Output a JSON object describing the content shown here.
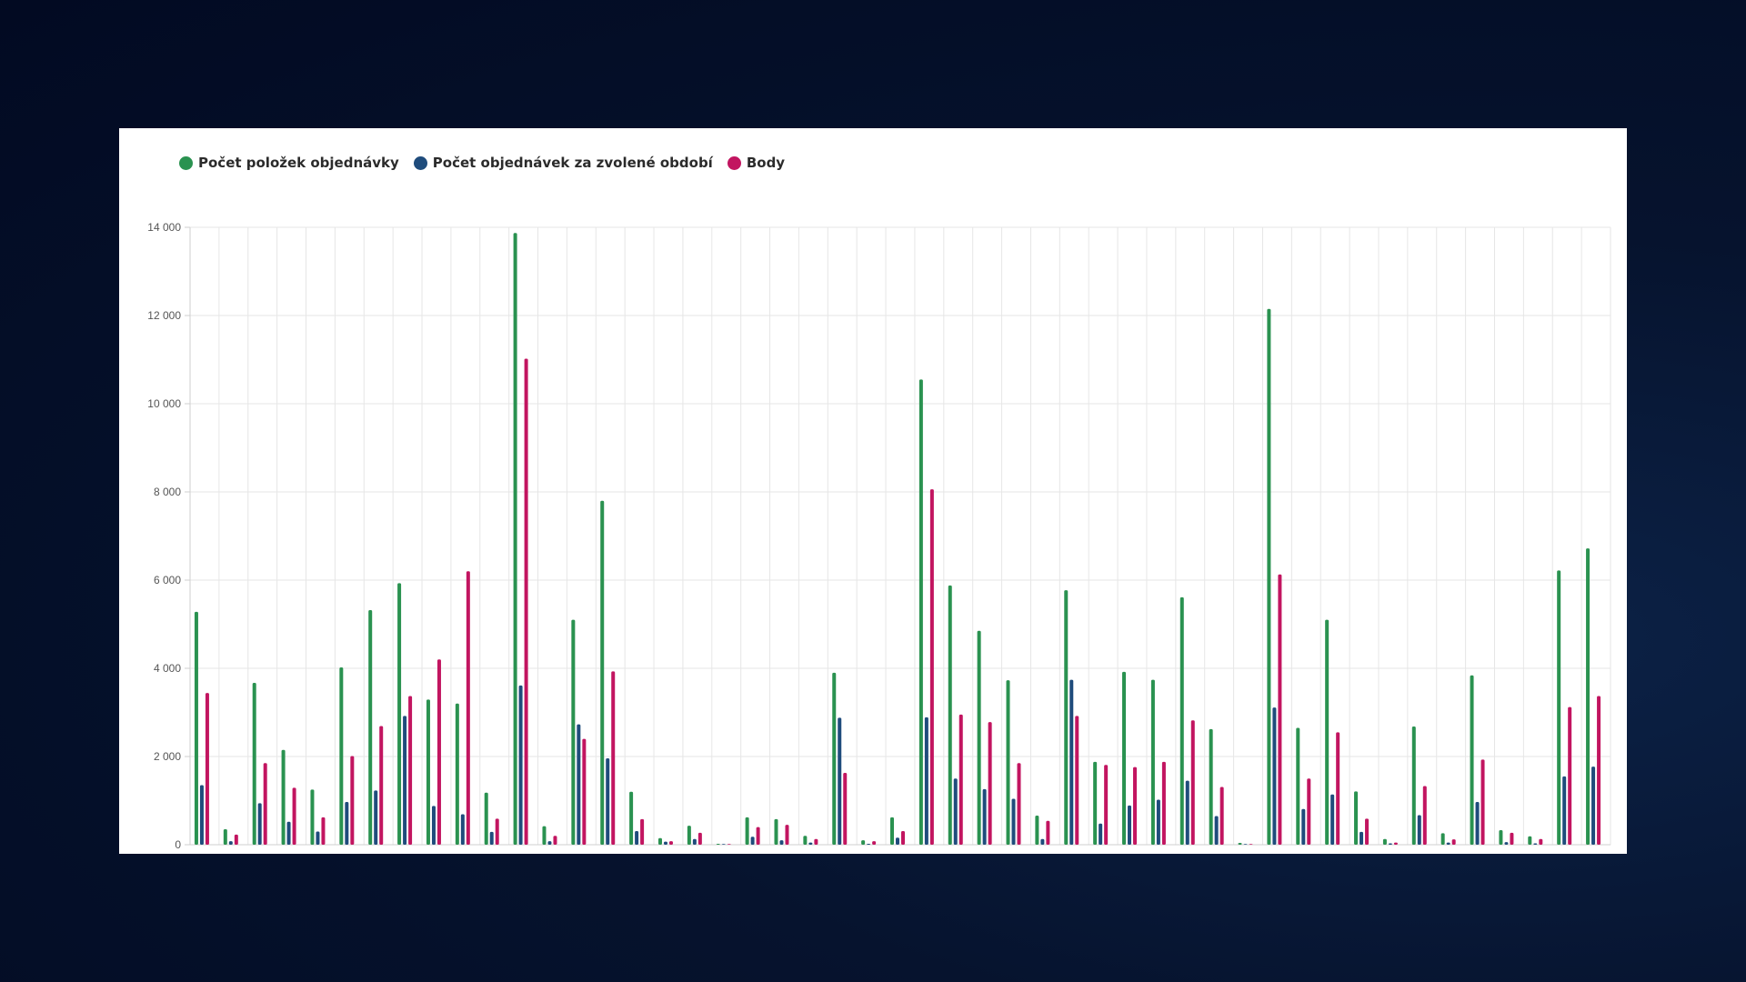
{
  "colors": {
    "green": "#2a9250",
    "blue": "#1f4c7c",
    "red": "#c21560"
  },
  "legend": [
    {
      "label": "Počet položek objednávky",
      "color": "#2a9250"
    },
    {
      "label": "Počet objednávek za zvolené období",
      "color": "#1f4c7c"
    },
    {
      "label": "Body",
      "color": "#c21560"
    }
  ],
  "chart_data": {
    "type": "bar",
    "grid": true,
    "legend_position": "top-left",
    "ylim": [
      0,
      14000
    ],
    "yticks": [
      "0",
      "2 000",
      "4 000",
      "6 000",
      "8 000",
      "10 000",
      "12 000",
      "14 000"
    ],
    "series": [
      {
        "name": "Počet položek objednávky",
        "color": "#2a9250",
        "values": [
          5280,
          350,
          3670,
          2150,
          1250,
          4020,
          5320,
          5930,
          3290,
          3200,
          1180,
          13870,
          420,
          5100,
          7800,
          1200,
          150,
          430,
          20,
          620,
          580,
          200,
          3900,
          100,
          620,
          10550,
          5880,
          4850,
          3730,
          660,
          5770,
          1880,
          3920,
          3740,
          5610,
          2620,
          40,
          12150,
          2650,
          5100,
          1210,
          130,
          2680,
          260,
          3840,
          330,
          190,
          6220,
          6720
        ]
      },
      {
        "name": "Počet objednávek za zvolené období",
        "color": "#1f4c7c",
        "values": [
          1350,
          80,
          940,
          520,
          300,
          970,
          1230,
          2920,
          880,
          690,
          290,
          3610,
          80,
          2730,
          1960,
          310,
          70,
          130,
          10,
          180,
          100,
          50,
          2880,
          20,
          160,
          2890,
          1500,
          1260,
          1040,
          130,
          3740,
          480,
          890,
          1020,
          1450,
          650,
          10,
          3110,
          810,
          1140,
          290,
          30,
          670,
          50,
          970,
          60,
          30,
          1550,
          1770
        ]
      },
      {
        "name": "Body",
        "color": "#c21560",
        "values": [
          3440,
          230,
          1850,
          1290,
          620,
          2010,
          2690,
          3370,
          4200,
          6200,
          590,
          11020,
          200,
          2400,
          3930,
          580,
          80,
          270,
          0,
          400,
          450,
          130,
          1630,
          80,
          310,
          8060,
          2950,
          2780,
          1850,
          540,
          2920,
          1810,
          1760,
          1880,
          2820,
          1310,
          10,
          6130,
          1500,
          2550,
          590,
          50,
          1330,
          120,
          1930,
          270,
          130,
          3120,
          3370
        ]
      }
    ]
  }
}
